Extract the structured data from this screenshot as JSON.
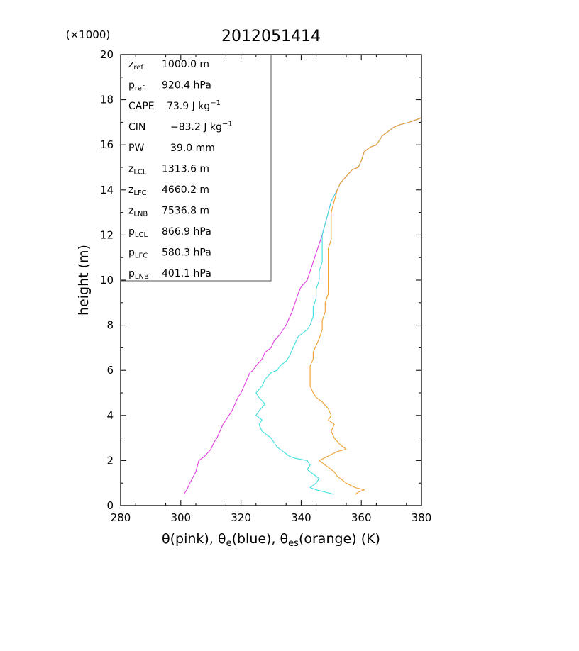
{
  "chart_data": {
    "type": "line",
    "title": "2012051414",
    "y_multiplier_label": "(×1000)",
    "ylabel": "height (m)",
    "xlabel_parts": [
      {
        "text": "θ(pink), θ"
      },
      {
        "text": "e",
        "sub": true
      },
      {
        "text": "(blue), θ"
      },
      {
        "text": "es",
        "sub": true
      },
      {
        "text": "(orange)   (K)"
      }
    ],
    "xlim": [
      280,
      380
    ],
    "ylim": [
      0,
      20
    ],
    "x_ticks": [
      "280",
      "300",
      "320",
      "340",
      "360",
      "380"
    ],
    "y_ticks": [
      "0",
      "2",
      "4",
      "6",
      "8",
      "10",
      "12",
      "14",
      "16",
      "18",
      "20"
    ],
    "grid": false,
    "info_box": [
      {
        "sym": "z",
        "sub": "ref",
        "value": "1000.0 m"
      },
      {
        "sym": "p",
        "sub": "ref",
        "value": "920.4 hPa"
      },
      {
        "sym": "CAPE",
        "sub": "",
        "value": "73.9 J kg",
        "sup": "−1"
      },
      {
        "sym": "CIN",
        "sub": "",
        "value": "−83.2 J kg",
        "sup": "−1"
      },
      {
        "sym": "PW",
        "sub": "",
        "value": "39.0 mm"
      },
      {
        "sym": "z",
        "sub": "LCL",
        "value": "1313.6 m"
      },
      {
        "sym": "z",
        "sub": "LFC",
        "value": "4660.2 m"
      },
      {
        "sym": "z",
        "sub": "LNB",
        "value": "7536.8 m"
      },
      {
        "sym": "p",
        "sub": "LCL",
        "value": "866.9 hPa"
      },
      {
        "sym": "p",
        "sub": "LFC",
        "value": "580.3 hPa"
      },
      {
        "sym": "p",
        "sub": "LNB",
        "value": "401.1 hPa"
      }
    ],
    "series": [
      {
        "color": "#e040e0",
        "points": [
          [
            301,
            0.5
          ],
          [
            302,
            0.7
          ],
          [
            303,
            1.0
          ],
          [
            305,
            1.5
          ],
          [
            306,
            2.0
          ],
          [
            308,
            2.2
          ],
          [
            310,
            2.5
          ],
          [
            311,
            2.8
          ],
          [
            312,
            3.0
          ],
          [
            313,
            3.3
          ],
          [
            314,
            3.6
          ],
          [
            315,
            3.8
          ],
          [
            316,
            4.0
          ],
          [
            317,
            4.2
          ],
          [
            318,
            4.5
          ],
          [
            319,
            4.8
          ],
          [
            320,
            5.0
          ],
          [
            321,
            5.3
          ],
          [
            322,
            5.6
          ],
          [
            323,
            5.9
          ],
          [
            324,
            6.0
          ],
          [
            325,
            6.2
          ],
          [
            327,
            6.5
          ],
          [
            328,
            6.8
          ],
          [
            330,
            7.0
          ],
          [
            331,
            7.3
          ],
          [
            333,
            7.6
          ],
          [
            335,
            8.0
          ],
          [
            336,
            8.3
          ],
          [
            337,
            8.6
          ],
          [
            338,
            9.0
          ],
          [
            339,
            9.4
          ],
          [
            340,
            9.7
          ],
          [
            342,
            10.0
          ],
          [
            343,
            10.4
          ],
          [
            344,
            10.8
          ],
          [
            345,
            11.2
          ],
          [
            346,
            11.6
          ],
          [
            347,
            12.0
          ],
          [
            348,
            12.5
          ],
          [
            349,
            13.0
          ],
          [
            350,
            13.5
          ],
          [
            352,
            14.0
          ],
          [
            353,
            14.3
          ],
          [
            355,
            14.6
          ],
          [
            357,
            14.9
          ],
          [
            359,
            15.0
          ],
          [
            360,
            15.3
          ],
          [
            361,
            15.7
          ],
          [
            363,
            15.9
          ],
          [
            365,
            16.0
          ],
          [
            367,
            16.4
          ],
          [
            369,
            16.6
          ],
          [
            371,
            16.8
          ],
          [
            373,
            16.9
          ],
          [
            376,
            17.0
          ],
          [
            378,
            17.1
          ],
          [
            380,
            17.2
          ]
        ]
      },
      {
        "color": "#40e0e0",
        "points": [
          [
            351,
            0.5
          ],
          [
            348,
            0.6
          ],
          [
            345,
            0.7
          ],
          [
            343,
            0.8
          ],
          [
            345,
            1.0
          ],
          [
            346,
            1.2
          ],
          [
            344,
            1.4
          ],
          [
            342,
            1.6
          ],
          [
            343,
            1.8
          ],
          [
            342,
            2.0
          ],
          [
            338,
            2.1
          ],
          [
            336,
            2.2
          ],
          [
            334,
            2.4
          ],
          [
            332,
            2.6
          ],
          [
            331,
            2.8
          ],
          [
            330,
            3.0
          ],
          [
            329,
            3.1
          ],
          [
            327,
            3.3
          ],
          [
            326,
            3.6
          ],
          [
            327,
            3.8
          ],
          [
            325,
            4.0
          ],
          [
            326,
            4.2
          ],
          [
            328,
            4.5
          ],
          [
            326,
            4.8
          ],
          [
            325,
            5.0
          ],
          [
            327,
            5.3
          ],
          [
            328,
            5.6
          ],
          [
            330,
            5.9
          ],
          [
            332,
            6.0
          ],
          [
            333,
            6.2
          ],
          [
            335,
            6.4
          ],
          [
            336,
            6.6
          ],
          [
            337,
            6.9
          ],
          [
            338,
            7.2
          ],
          [
            339,
            7.5
          ],
          [
            340,
            7.6
          ],
          [
            342,
            7.8
          ],
          [
            343,
            8.0
          ],
          [
            344,
            8.4
          ],
          [
            344,
            8.8
          ],
          [
            345,
            9.2
          ],
          [
            345,
            9.6
          ],
          [
            346,
            10.0
          ],
          [
            346,
            10.4
          ],
          [
            347,
            10.8
          ],
          [
            347,
            11.2
          ],
          [
            347,
            11.6
          ],
          [
            347,
            12.0
          ],
          [
            348,
            12.5
          ],
          [
            349,
            13.0
          ],
          [
            350,
            13.5
          ],
          [
            352,
            14.0
          ],
          [
            353,
            14.3
          ],
          [
            355,
            14.6
          ],
          [
            357,
            14.9
          ],
          [
            359,
            15.0
          ],
          [
            360,
            15.3
          ],
          [
            361,
            15.7
          ],
          [
            363,
            15.9
          ],
          [
            365,
            16.0
          ],
          [
            367,
            16.4
          ],
          [
            369,
            16.6
          ],
          [
            371,
            16.8
          ],
          [
            373,
            16.9
          ],
          [
            376,
            17.0
          ],
          [
            378,
            17.1
          ],
          [
            380,
            17.2
          ]
        ]
      },
      {
        "color": "#f0a030",
        "points": [
          [
            358,
            0.5
          ],
          [
            359,
            0.6
          ],
          [
            361,
            0.7
          ],
          [
            358,
            0.8
          ],
          [
            355,
            1.0
          ],
          [
            352,
            1.3
          ],
          [
            351,
            1.5
          ],
          [
            348,
            1.8
          ],
          [
            346,
            2.0
          ],
          [
            349,
            2.2
          ],
          [
            352,
            2.4
          ],
          [
            355,
            2.5
          ],
          [
            353,
            2.7
          ],
          [
            351,
            3.0
          ],
          [
            350,
            3.3
          ],
          [
            351,
            3.6
          ],
          [
            349,
            3.8
          ],
          [
            350,
            4.0
          ],
          [
            349,
            4.3
          ],
          [
            347,
            4.6
          ],
          [
            345,
            4.8
          ],
          [
            344,
            5.0
          ],
          [
            343,
            5.3
          ],
          [
            343,
            5.6
          ],
          [
            343,
            5.9
          ],
          [
            343,
            6.2
          ],
          [
            344,
            6.5
          ],
          [
            344,
            6.8
          ],
          [
            345,
            7.1
          ],
          [
            346,
            7.4
          ],
          [
            347,
            7.8
          ],
          [
            347,
            8.2
          ],
          [
            348,
            8.6
          ],
          [
            348,
            9.0
          ],
          [
            349,
            9.4
          ],
          [
            349,
            9.8
          ],
          [
            349,
            10.2
          ],
          [
            349,
            10.6
          ],
          [
            349,
            11.0
          ],
          [
            349,
            11.4
          ],
          [
            350,
            11.8
          ],
          [
            350,
            12.2
          ],
          [
            350,
            12.6
          ],
          [
            350,
            13.0
          ],
          [
            351,
            13.5
          ],
          [
            352,
            14.0
          ],
          [
            353,
            14.3
          ],
          [
            355,
            14.6
          ],
          [
            357,
            14.9
          ],
          [
            359,
            15.0
          ],
          [
            360,
            15.3
          ],
          [
            361,
            15.7
          ],
          [
            363,
            15.9
          ],
          [
            365,
            16.0
          ],
          [
            367,
            16.4
          ],
          [
            369,
            16.6
          ],
          [
            371,
            16.8
          ],
          [
            373,
            16.9
          ],
          [
            376,
            17.0
          ],
          [
            378,
            17.1
          ],
          [
            380,
            17.2
          ]
        ]
      }
    ]
  }
}
